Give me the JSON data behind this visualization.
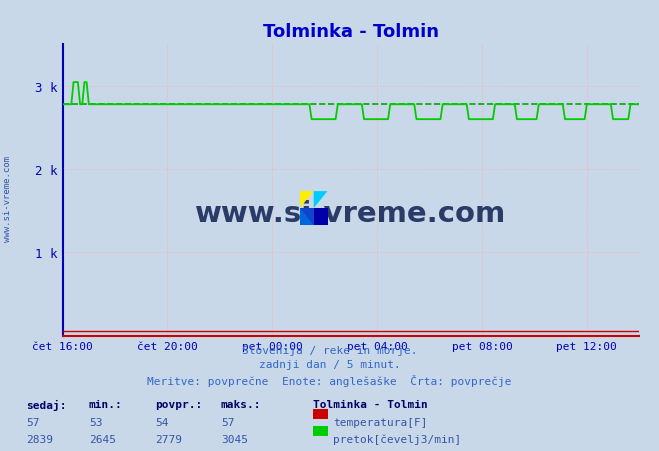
{
  "title": "Tolminka - Tolmin",
  "title_color": "#0000cc",
  "bg_color": "#c8d8e8",
  "plot_bg_color": "#c8d8e8",
  "grid_color": "#ffb0b0",
  "axis_color_left": "#0000bb",
  "axis_color_bottom": "#cc0000",
  "tick_color": "#0000bb",
  "flow_color": "#00cc00",
  "temp_color": "#cc0000",
  "avg_line_color": "#00aa00",
  "xlim": [
    0,
    1320
  ],
  "ylim": [
    0,
    3500
  ],
  "yticks": [
    1000,
    2000,
    3000
  ],
  "ytick_labels": [
    "1 k",
    "2 k",
    "3 k"
  ],
  "xtick_positions": [
    0,
    240,
    480,
    720,
    960,
    1200
  ],
  "xtick_labels": [
    "čet 16:00",
    "čet 20:00",
    "pet 00:00",
    "pet 04:00",
    "pet 08:00",
    "pet 12:00"
  ],
  "avg_flow": 2779,
  "min_flow": 2645,
  "max_flow": 3045,
  "curr_flow": 2839,
  "avg_temp": 54,
  "min_temp": 53,
  "max_temp": 57,
  "curr_temp": 57,
  "footer_line1": "Slovenija / reke in morje.",
  "footer_line2": "zadnji dan / 5 minut.",
  "footer_line3": "Meritve: povprečne  Enote: anglešaške  Črta: povprečje",
  "legend_title": "Tolminka - Tolmin",
  "legend_temp": "temperatura[F]",
  "legend_flow": "pretok[čevelj3/min]",
  "stat_headers": [
    "sedaj:",
    "min.:",
    "povpr.:",
    "maks.:"
  ],
  "stat_temp": [
    57,
    53,
    54,
    57
  ],
  "stat_flow": [
    2839,
    2645,
    2779,
    3045
  ],
  "watermark": "www.si-vreme.com",
  "watermark_color": "#1a2a5a",
  "sidebar_text": "www.si-vreme.com",
  "sidebar_color": "#3355aa"
}
